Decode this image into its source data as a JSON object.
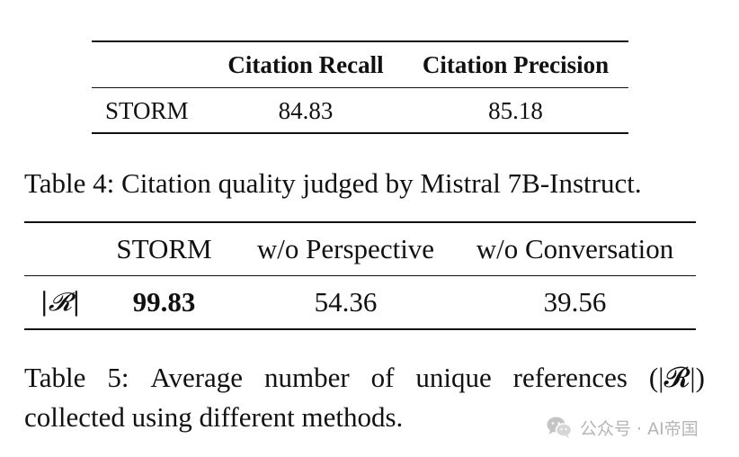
{
  "table4": {
    "headers": [
      "",
      "Citation Recall",
      "Citation Precision"
    ],
    "rows": [
      {
        "method": "STORM",
        "citation_recall": "84.83",
        "citation_precision": "85.18"
      }
    ],
    "caption": "Table 4: Citation quality judged by Mistral 7B-Instruct."
  },
  "table5": {
    "headers": [
      "",
      "STORM",
      "w/o Perspective",
      "w/o Conversation"
    ],
    "rows": [
      {
        "metric": "|𝓡|",
        "storm": "99.83",
        "wo_perspective": "54.36",
        "wo_conversation": "39.56"
      }
    ],
    "caption_line1_words": [
      "Table",
      "5:",
      "Average",
      "number",
      "of",
      "unique",
      "references",
      "(|𝓡|)"
    ],
    "caption_line2": "collected using different methods."
  },
  "watermark": {
    "icon": "wechat-icon",
    "text": "公众号 · AI帝国",
    "color": "#b5b5b5"
  }
}
